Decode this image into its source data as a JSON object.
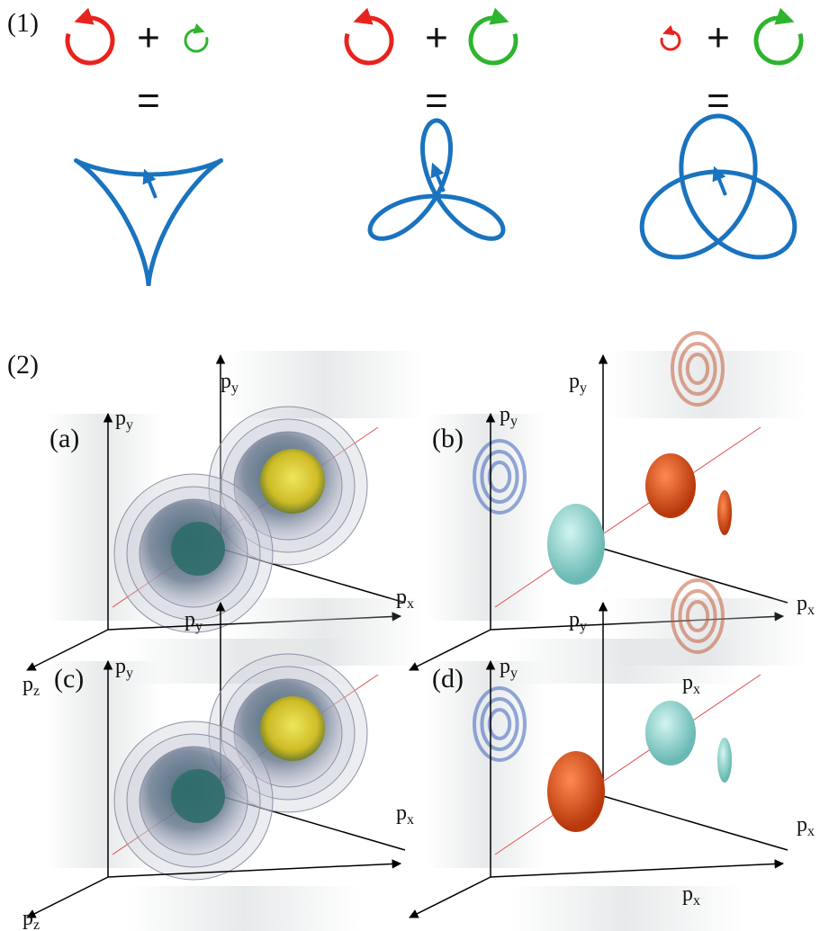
{
  "part1": {
    "label": "(1)",
    "columns": [
      {
        "plus": "+",
        "equals": "="
      },
      {
        "plus": "+",
        "equals": "="
      },
      {
        "plus": "+",
        "equals": "="
      }
    ]
  },
  "part2": {
    "label": "(2)",
    "panels": [
      {
        "label": "(a)"
      },
      {
        "label": "(b)"
      },
      {
        "label": "(c)"
      },
      {
        "label": "(d)"
      }
    ],
    "axis_labels": [
      {
        "base": "p",
        "sub": "y"
      },
      {
        "base": "p",
        "sub": "y"
      },
      {
        "base": "p",
        "sub": "x"
      },
      {
        "base": "p",
        "sub": "z"
      },
      {
        "base": "p",
        "sub": "y"
      },
      {
        "base": "p",
        "sub": "y"
      },
      {
        "base": "p",
        "sub": "x"
      },
      {
        "base": "p",
        "sub": "z"
      },
      {
        "base": "p",
        "sub": "y"
      },
      {
        "base": "p",
        "sub": "y"
      },
      {
        "base": "p",
        "sub": "x"
      },
      {
        "base": "p",
        "sub": "y"
      },
      {
        "base": "p",
        "sub": "y"
      },
      {
        "base": "p",
        "sub": "x"
      },
      {
        "base": "p",
        "sub": "x"
      },
      {
        "base": "p",
        "sub": "x"
      }
    ]
  }
}
